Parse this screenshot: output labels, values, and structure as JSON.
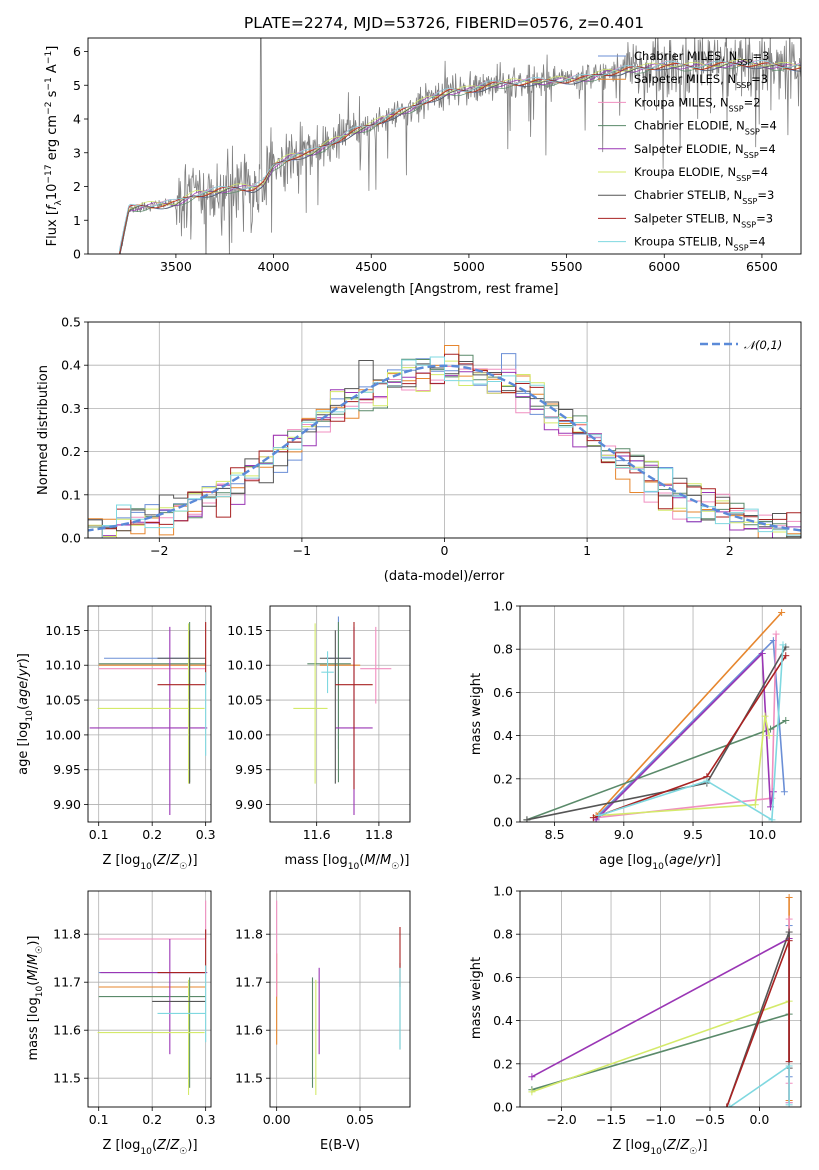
{
  "figure_title": "PLATE=2274, MJD=53726, FIBERID=0576, z=0.401",
  "model_colors": [
    "#6b8fd6",
    "#e6862e",
    "#f08fc0",
    "#5a8a6a",
    "#9a36b5",
    "#d4ea6a",
    "#555555",
    "#a82222",
    "#7fd8e0"
  ],
  "chart_data": [
    {
      "id": "spectrum",
      "type": "line",
      "xlabel": "wavelength [Angstrom, rest frame]",
      "ylabel": "Flux [f_λ 10^-17 erg cm^-2 s^-1 A^-1]",
      "xlim": [
        3050,
        6700
      ],
      "ylim": [
        0,
        6.4
      ],
      "xticks": [
        3500,
        4000,
        4500,
        5000,
        5500,
        6000,
        6500
      ],
      "yticks": [
        0,
        1,
        2,
        3,
        4,
        5,
        6
      ],
      "data_color": "#808080",
      "data_xrange": [
        3210,
        6700
      ],
      "legend_position": "upper-right",
      "legend": [
        {
          "base": "Chabrier MILES, N",
          "sub": "SSP",
          "tail": "=3"
        },
        {
          "base": "Salpeter MILES, N",
          "sub": "SSP",
          "tail": "=3"
        },
        {
          "base": "Kroupa MILES, N",
          "sub": "SSP",
          "tail": "=2"
        },
        {
          "base": "Chabrier ELODIE, N",
          "sub": "SSP",
          "tail": "=4"
        },
        {
          "base": "Salpeter ELODIE, N",
          "sub": "SSP",
          "tail": "=4"
        },
        {
          "base": "Kroupa ELODIE, N",
          "sub": "SSP",
          "tail": "=4"
        },
        {
          "base": "Chabrier STELIB, N",
          "sub": "SSP",
          "tail": "=3"
        },
        {
          "base": "Salpeter STELIB, N",
          "sub": "SSP",
          "tail": "=3"
        },
        {
          "base": "Kroupa STELIB, N",
          "sub": "SSP",
          "tail": "=4"
        }
      ],
      "continuum_knots": {
        "x": [
          3210,
          3260,
          3400,
          3500,
          3600,
          3700,
          3800,
          3900,
          3950,
          4000,
          4100,
          4200,
          4300,
          4400,
          4500,
          4600,
          4700,
          4800,
          4900,
          5000,
          5100,
          5200,
          5300,
          5400,
          5500,
          5600,
          5700,
          5800,
          5900,
          6000,
          6100,
          6200,
          6300,
          6400,
          6500,
          6600,
          6700
        ],
        "y": [
          0,
          1.35,
          1.45,
          1.5,
          1.75,
          1.85,
          1.95,
          1.95,
          2.1,
          2.6,
          2.9,
          3.0,
          3.3,
          3.6,
          3.8,
          4.1,
          4.3,
          4.6,
          4.8,
          4.85,
          5.0,
          5.05,
          5.1,
          5.1,
          5.15,
          5.2,
          5.35,
          5.45,
          5.5,
          5.6,
          5.55,
          5.55,
          5.6,
          5.65,
          5.6,
          5.55,
          5.55
        ]
      }
    },
    {
      "id": "residuals",
      "type": "step",
      "xlabel": "(data-model)/error",
      "ylabel": "Normed distribution",
      "xlim": [
        -2.5,
        2.5
      ],
      "ylim": [
        0,
        0.5
      ],
      "xticks": [
        -2,
        -1,
        0,
        1,
        2
      ],
      "yticks": [
        0.0,
        0.1,
        0.2,
        0.3,
        0.4,
        0.5
      ],
      "bin_width": 0.1,
      "reference_label": "𝒩(0,1)",
      "reference_color": "#5b8ad8",
      "legend_position": "upper-right",
      "grid": true
    },
    {
      "id": "age-vs-Z",
      "type": "errorbar",
      "xlabel": "Z [log10(Z/Z☉)]",
      "ylabel": "age [log10(age/yr)]",
      "xlim": [
        0.08,
        0.31
      ],
      "ylim": [
        9.875,
        10.185
      ],
      "xticks": [
        0.1,
        0.2,
        0.3
      ],
      "yticks": [
        9.9,
        9.95,
        10.0,
        10.05,
        10.1,
        10.15
      ],
      "grid": true,
      "points": [
        {
          "x": 0.27,
          "y": 10.11,
          "xerr": [
            0.16,
            0.0
          ],
          "yerr": [
            0.0,
            0.0
          ],
          "c": 0
        },
        {
          "x": 0.3,
          "y": 10.1,
          "xerr": [
            0.2,
            0.0
          ],
          "yerr": [
            0.0,
            0.0
          ],
          "c": 1
        },
        {
          "x": 0.3,
          "y": 10.095,
          "xerr": [
            0.2,
            0.0
          ],
          "yerr": [
            0.0,
            0.0
          ],
          "c": 2
        },
        {
          "x": 0.27,
          "y": 10.102,
          "xerr": [
            0.17,
            0.03
          ],
          "yerr": [
            0.17,
            0.06
          ],
          "c": 3
        },
        {
          "x": 0.233,
          "y": 10.01,
          "xerr": [
            0.15,
            0.07
          ],
          "yerr": [
            0.125,
            0.145
          ],
          "c": 4
        },
        {
          "x": 0.268,
          "y": 10.038,
          "xerr": [
            0.17,
            0.03
          ],
          "yerr": [
            0.108,
            0.122
          ],
          "c": 5
        },
        {
          "x": 0.27,
          "y": 10.11,
          "xerr": [
            0.06,
            0.03
          ],
          "yerr": [
            0.18,
            0.04
          ],
          "c": 6
        },
        {
          "x": 0.3,
          "y": 10.072,
          "xerr": [
            0.09,
            0.0
          ],
          "yerr": [
            0.0,
            0.09
          ],
          "c": 7
        },
        {
          "x": 0.3,
          "y": 10.09,
          "xerr": [
            0.0,
            0.0
          ],
          "yerr": [
            0.12,
            0.0
          ],
          "c": 8
        }
      ]
    },
    {
      "id": "age-vs-mass",
      "type": "errorbar",
      "xlabel": "mass [log10(M/M☉)]",
      "ylabel": "",
      "xlim": [
        11.45,
        11.9
      ],
      "ylim": [
        9.875,
        10.185
      ],
      "xticks": [
        11.6,
        11.8
      ],
      "yticks": [
        9.9,
        9.95,
        10.0,
        10.05,
        10.1,
        10.15
      ],
      "grid": true,
      "points": [
        {
          "x": 11.67,
          "y": 10.11,
          "xerr": [
            0.04,
            0.04
          ],
          "yerr": [
            0.13,
            0.06
          ],
          "c": 0
        },
        {
          "x": 11.69,
          "y": 10.1,
          "xerr": [
            0.08,
            0.05
          ],
          "yerr": [
            0.0,
            0.0
          ],
          "c": 1
        },
        {
          "x": 11.79,
          "y": 10.095,
          "xerr": [
            0.05,
            0.05
          ],
          "yerr": [
            0.05,
            0.06
          ],
          "c": 2
        },
        {
          "x": 11.67,
          "y": 10.102,
          "xerr": [
            0.1,
            0.04
          ],
          "yerr": [
            0.17,
            0.06
          ],
          "c": 3
        },
        {
          "x": 11.72,
          "y": 10.01,
          "xerr": [
            0.06,
            0.06
          ],
          "yerr": [
            0.125,
            0.145
          ],
          "c": 4
        },
        {
          "x": 11.595,
          "y": 10.038,
          "xerr": [
            0.07,
            0.04
          ],
          "yerr": [
            0.108,
            0.122
          ],
          "c": 5
        },
        {
          "x": 11.66,
          "y": 10.11,
          "xerr": [
            0.05,
            0.05
          ],
          "yerr": [
            0.18,
            0.04
          ],
          "c": 6
        },
        {
          "x": 11.72,
          "y": 10.072,
          "xerr": [
            0.06,
            0.06
          ],
          "yerr": [
            0.15,
            0.09
          ],
          "c": 7
        },
        {
          "x": 11.635,
          "y": 10.09,
          "xerr": [
            0.02,
            0.02
          ],
          "yerr": [
            0.03,
            0.03
          ],
          "c": 8
        }
      ]
    },
    {
      "id": "massweight-vs-age",
      "type": "line",
      "xlabel": "age [log10(age/yr)]",
      "ylabel": "mass weight",
      "xlim": [
        8.25,
        10.28
      ],
      "ylim": [
        0,
        1.0
      ],
      "xticks": [
        8.5,
        9.0,
        9.5,
        10.0
      ],
      "yticks": [
        0.0,
        0.2,
        0.4,
        0.6,
        0.8,
        1.0
      ],
      "grid": true,
      "series": [
        {
          "c": 0,
          "x": [
            8.8,
            10.08,
            10.16
          ],
          "y": [
            0.02,
            0.84,
            0.14
          ]
        },
        {
          "c": 1,
          "x": [
            8.8,
            10.14
          ],
          "y": [
            0.03,
            0.97
          ]
        },
        {
          "c": 2,
          "x": [
            8.8,
            10.07,
            10.1
          ],
          "y": [
            0.02,
            0.11,
            0.87
          ]
        },
        {
          "c": 3,
          "x": [
            8.3,
            10.06,
            10.17
          ],
          "y": [
            0.01,
            0.43,
            0.47
          ]
        },
        {
          "c": 4,
          "x": [
            8.8,
            10.0,
            10.06,
            10.08
          ],
          "y": [
            0.01,
            0.78,
            0.07,
            0.14
          ]
        },
        {
          "c": 5,
          "x": [
            8.82,
            9.95,
            10.02,
            10.05
          ],
          "y": [
            0.03,
            0.08,
            0.49,
            0.4
          ]
        },
        {
          "c": 6,
          "x": [
            8.3,
            9.6,
            10.17
          ],
          "y": [
            0.01,
            0.18,
            0.81
          ]
        },
        {
          "c": 7,
          "x": [
            8.78,
            9.6,
            10.17
          ],
          "y": [
            0.02,
            0.21,
            0.77
          ]
        },
        {
          "c": 8,
          "x": [
            8.82,
            9.6,
            10.07,
            10.15
          ],
          "y": [
            0.03,
            0.19,
            0.01,
            0.82
          ]
        }
      ]
    },
    {
      "id": "mass-vs-Z",
      "type": "errorbar",
      "xlabel": "Z [log10(Z/Z☉)]",
      "ylabel": "mass [log10(M/M☉)]",
      "xlim": [
        0.08,
        0.31
      ],
      "ylim": [
        11.44,
        11.89
      ],
      "xticks": [
        0.1,
        0.2,
        0.3
      ],
      "yticks": [
        11.5,
        11.6,
        11.7,
        11.8
      ],
      "grid": true,
      "points": [
        {
          "x": 0.3,
          "y": 11.72,
          "xerr": [
            0.2,
            0.0
          ],
          "yerr": [
            0.0,
            0.0
          ],
          "c": 0
        },
        {
          "x": 0.3,
          "y": 11.69,
          "xerr": [
            0.2,
            0.0
          ],
          "yerr": [
            0.0,
            0.0
          ],
          "c": 1
        },
        {
          "x": 0.3,
          "y": 11.79,
          "xerr": [
            0.2,
            0.0
          ],
          "yerr": [
            0.0,
            0.08
          ],
          "c": 2
        },
        {
          "x": 0.27,
          "y": 11.67,
          "xerr": [
            0.17,
            0.03
          ],
          "yerr": [
            0.19,
            0.04
          ],
          "c": 3
        },
        {
          "x": 0.233,
          "y": 11.72,
          "xerr": [
            0.13,
            0.07
          ],
          "yerr": [
            0.17,
            0.07
          ],
          "c": 4
        },
        {
          "x": 0.268,
          "y": 11.595,
          "xerr": [
            0.17,
            0.03
          ],
          "yerr": [
            0.13,
            0.11
          ],
          "c": 5
        },
        {
          "x": 0.27,
          "y": 11.66,
          "xerr": [
            0.07,
            0.03
          ],
          "yerr": [
            0.0,
            0.0
          ],
          "c": 6
        },
        {
          "x": 0.3,
          "y": 11.72,
          "xerr": [
            0.09,
            0.0
          ],
          "yerr": [
            0.0,
            0.09
          ],
          "c": 7
        },
        {
          "x": 0.3,
          "y": 11.635,
          "xerr": [
            0.09,
            0.0
          ],
          "yerr": [
            0.06,
            0.1
          ],
          "c": 8
        }
      ]
    },
    {
      "id": "mass-vs-EBV",
      "type": "errorbar",
      "xlabel": "E(B-V)",
      "ylabel": "",
      "xlim": [
        -0.004,
        0.08
      ],
      "ylim": [
        11.44,
        11.89
      ],
      "xticks": [
        0.0,
        0.05
      ],
      "yticks": [
        11.5,
        11.6,
        11.7,
        11.8
      ],
      "grid": true,
      "points": [
        {
          "x": 0.0,
          "y": 11.72,
          "xerr": [
            0.0,
            0.0
          ],
          "yerr": [
            0.0,
            0.0
          ],
          "c": 0
        },
        {
          "x": 0.0,
          "y": 11.69,
          "xerr": [
            0.0,
            0.0
          ],
          "yerr": [
            0.12,
            0.07
          ],
          "c": 1
        },
        {
          "x": 0.0,
          "y": 11.79,
          "xerr": [
            0.0,
            0.0
          ],
          "yerr": [
            0.12,
            0.08
          ],
          "c": 2
        },
        {
          "x": 0.0215,
          "y": 11.6,
          "xerr": [
            0.0,
            0.0
          ],
          "yerr": [
            0.12,
            0.11
          ],
          "c": 3
        },
        {
          "x": 0.0255,
          "y": 11.63,
          "xerr": [
            0.0,
            0.0
          ],
          "yerr": [
            0.08,
            0.1
          ],
          "c": 4
        },
        {
          "x": 0.0235,
          "y": 11.595,
          "xerr": [
            0.0,
            0.0
          ],
          "yerr": [
            0.13,
            0.11
          ],
          "c": 5
        },
        {
          "x": 0.074,
          "y": 11.66,
          "xerr": [
            0.0,
            0.0
          ],
          "yerr": [
            0.1,
            0.08
          ],
          "c": 6
        },
        {
          "x": 0.074,
          "y": 11.72,
          "xerr": [
            0.0,
            0.0
          ],
          "yerr": [
            0.03,
            0.095
          ],
          "c": 7
        },
        {
          "x": 0.074,
          "y": 11.65,
          "xerr": [
            0.0,
            0.0
          ],
          "yerr": [
            0.09,
            0.08
          ],
          "c": 8
        }
      ]
    },
    {
      "id": "massweight-vs-Z",
      "type": "line",
      "xlabel": "Z [log10(Z/Z☉)]",
      "ylabel": "mass weight",
      "xlim": [
        -2.42,
        0.42
      ],
      "ylim": [
        0,
        1.0
      ],
      "xticks": [
        -2.0,
        -1.5,
        -1.0,
        -0.5,
        0.0
      ],
      "yticks": [
        0.0,
        0.2,
        0.4,
        0.6,
        0.8,
        1.0
      ],
      "grid": true,
      "series": [
        {
          "c": 0,
          "x": [
            0.3,
            0.3,
            0.3
          ],
          "y": [
            0.84,
            0.14,
            0.02
          ]
        },
        {
          "c": 1,
          "x": [
            0.3,
            0.3
          ],
          "y": [
            0.97,
            0.03
          ]
        },
        {
          "c": 2,
          "x": [
            0.3,
            0.3,
            0.3
          ],
          "y": [
            0.87,
            0.11,
            0.02
          ]
        },
        {
          "c": 3,
          "x": [
            -2.3,
            0.3
          ],
          "y": [
            0.08,
            0.43
          ]
        },
        {
          "c": 4,
          "x": [
            -2.3,
            0.3
          ],
          "y": [
            0.14,
            0.78
          ]
        },
        {
          "c": 5,
          "x": [
            -2.3,
            0.3
          ],
          "y": [
            0.07,
            0.49
          ]
        },
        {
          "c": 6,
          "x": [
            -0.33,
            0.3,
            0.3
          ],
          "y": [
            0.0,
            0.81,
            0.18
          ]
        },
        {
          "c": 7,
          "x": [
            -0.33,
            0.3,
            0.3
          ],
          "y": [
            0.0,
            0.77,
            0.21
          ]
        },
        {
          "c": 8,
          "x": [
            -0.3,
            0.3,
            0.3
          ],
          "y": [
            0.0,
            0.19,
            0.01
          ]
        }
      ]
    }
  ]
}
